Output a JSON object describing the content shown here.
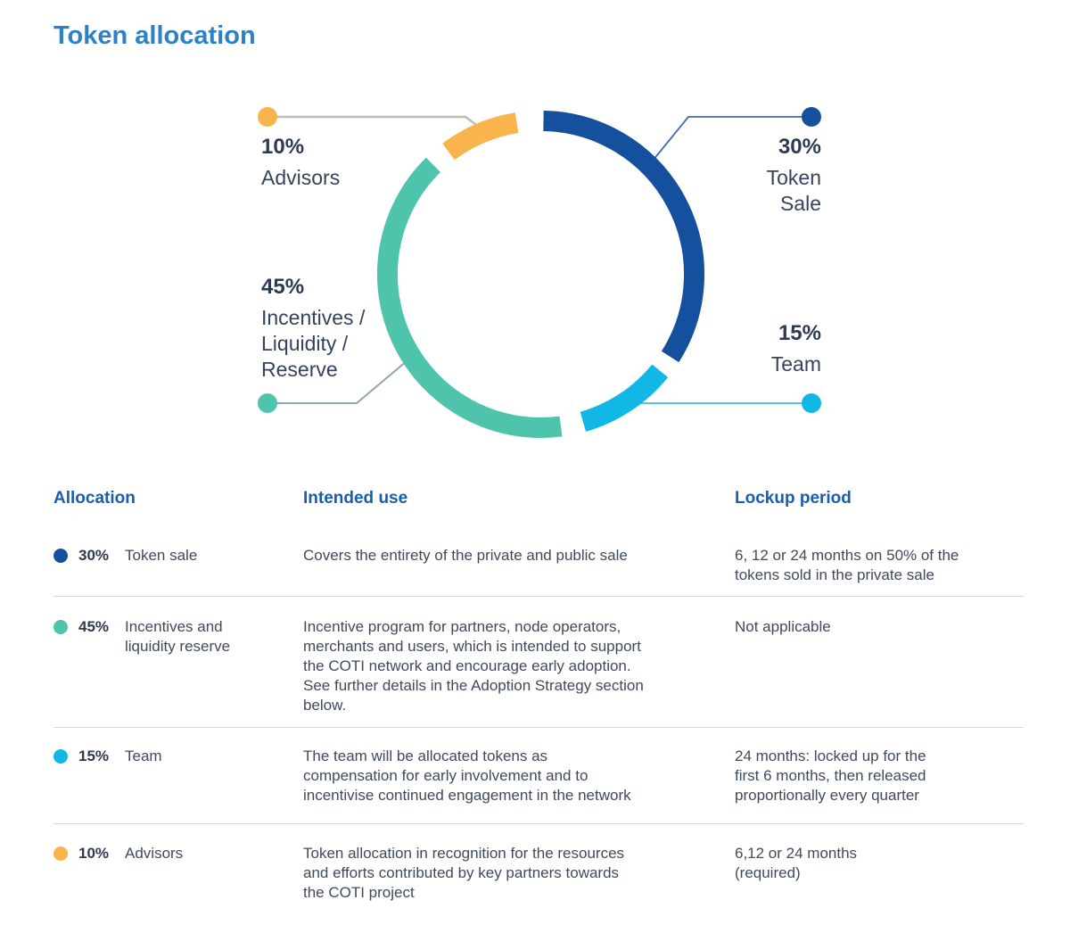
{
  "page_title": "Token allocation",
  "chart_data": {
    "type": "pie",
    "subtype": "donut",
    "title": "Token allocation",
    "legend_position": "callouts",
    "categories": [
      "Token Sale",
      "Team",
      "Incentives / Liquidity / Reserve",
      "Advisors"
    ],
    "values": [
      30,
      15,
      45,
      10
    ],
    "segments": [
      {
        "name": "Token Sale",
        "value_pct": 30,
        "callout_pct": "30%",
        "callout_label": "Token\nSale",
        "color": "#15509e",
        "connector_color": "#3e6cb0",
        "arc_deg": [
          1,
          122.5
        ]
      },
      {
        "name": "Team",
        "value_pct": 15,
        "callout_pct": "15%",
        "callout_label": "Team",
        "color": "#12b8e5",
        "connector_color": "#55c6e8",
        "arc_deg": [
          129,
          164
        ]
      },
      {
        "name": "Incentives / Liquidity / Reserve",
        "value_pct": 45,
        "callout_pct": "45%",
        "callout_label": "Incentives /\nLiquidity /\nReserve",
        "color": "#4fc4ac",
        "connector_color": "#8ba7b3",
        "arc_deg": [
          172.5,
          315.5
        ]
      },
      {
        "name": "Advisors",
        "value_pct": 10,
        "callout_pct": "10%",
        "callout_label": "Advisors",
        "color": "#f9b54b",
        "connector_color": "#c3bab0",
        "arc_deg": [
          323,
          351
        ]
      }
    ]
  },
  "table": {
    "headers": {
      "allocation": "Allocation",
      "intended_use": "Intended use",
      "lockup": "Lockup period"
    },
    "rows": [
      {
        "pct": "30%",
        "label": "Token sale",
        "color": "#15509e",
        "intended_use": "Covers the entirety of the private and public sale",
        "lockup": "6, 12 or 24 months on 50% of the\ntokens sold in the private sale"
      },
      {
        "pct": "45%",
        "label": "Incentives and\nliquidity reserve",
        "color": "#4fc4ac",
        "intended_use": "Incentive program for partners, node operators,\nmerchants and users, which is intended to support\nthe COTI network and encourage early adoption.\nSee further details in the Adoption Strategy section\nbelow.",
        "lockup": "Not applicable"
      },
      {
        "pct": "15%",
        "label": "Team",
        "color": "#12b8e5",
        "intended_use": "The team will be allocated tokens as\ncompensation for early involvement and to\nincentivise continued engagement in the network",
        "lockup": "24 months: locked up for the\nfirst 6 months, then released\nproportionally every quarter"
      },
      {
        "pct": "10%",
        "label": "Advisors",
        "color": "#f9b54b",
        "intended_use": "Token allocation in recognition for the resources\nand efforts contributed by key partners towards\nthe COTI project",
        "lockup": "6,12 or 24 months\n(required)"
      }
    ]
  }
}
